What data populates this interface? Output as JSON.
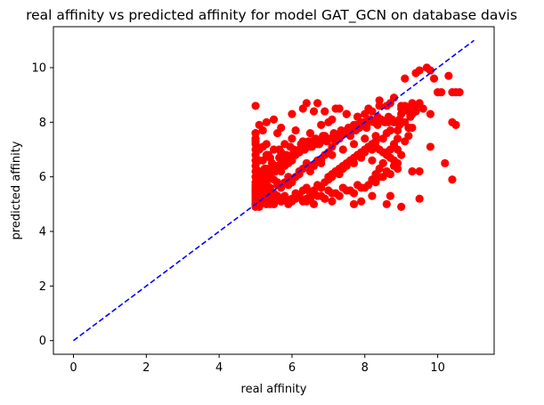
{
  "chart_data": {
    "type": "scatter",
    "title": "real affinity vs predicted affinity for model GAT_GCN on database davis",
    "xlabel": "real affinity",
    "ylabel": "predicted affinity",
    "xlim": [
      -0.55,
      11.55
    ],
    "ylim": [
      -0.5,
      11.5
    ],
    "xticks": [
      0,
      2,
      4,
      6,
      8,
      10
    ],
    "yticks": [
      0,
      2,
      4,
      6,
      8,
      10
    ],
    "grid": false,
    "series": [
      {
        "kind": "points",
        "color": "#ff0000",
        "marker": "circle",
        "x": [
          5.0,
          5.0,
          5.0,
          5.0,
          5.0,
          5.0,
          5.0,
          5.0,
          5.0,
          5.0,
          5.0,
          5.0,
          5.0,
          5.0,
          5.0,
          5.0,
          5.0,
          5.0,
          5.0,
          5.0,
          5.1,
          5.1,
          5.1,
          5.1,
          5.1,
          5.1,
          5.1,
          5.2,
          5.2,
          5.2,
          5.2,
          5.2,
          5.2,
          5.3,
          5.3,
          5.3,
          5.3,
          5.3,
          5.3,
          5.4,
          5.4,
          5.4,
          5.4,
          5.5,
          5.5,
          5.5,
          5.5,
          5.5,
          5.6,
          5.6,
          5.6,
          5.6,
          5.7,
          5.7,
          5.7,
          5.7,
          5.8,
          5.8,
          5.8,
          5.8,
          5.9,
          5.9,
          5.9,
          6.0,
          6.0,
          6.0,
          6.0,
          6.1,
          6.1,
          6.1,
          6.1,
          6.2,
          6.2,
          6.2,
          6.3,
          6.3,
          6.3,
          6.4,
          6.4,
          6.4,
          6.5,
          6.5,
          6.5,
          6.6,
          6.6,
          6.6,
          6.7,
          6.7,
          6.7,
          6.8,
          6.8,
          6.8,
          6.9,
          6.9,
          6.9,
          7.0,
          7.0,
          7.0,
          7.1,
          7.1,
          7.1,
          7.2,
          7.2,
          7.3,
          7.3,
          7.3,
          7.4,
          7.4,
          7.5,
          7.5,
          7.5,
          7.6,
          7.6,
          7.7,
          7.7,
          7.8,
          7.8,
          7.9,
          7.9,
          8.0,
          8.0,
          8.1,
          8.1,
          8.2,
          8.2,
          8.3,
          8.3,
          8.4,
          8.5,
          8.5,
          8.6,
          8.7,
          8.8,
          8.9,
          9.0,
          9.1,
          9.2,
          9.3,
          9.4,
          9.5,
          5.0,
          5.2,
          5.4,
          5.6,
          5.8,
          6.0,
          6.2,
          6.4,
          6.6,
          6.8,
          7.0,
          7.2,
          7.4,
          7.6,
          7.8,
          8.0,
          8.2,
          8.4,
          8.6,
          8.8,
          5.1,
          5.3,
          5.5,
          5.7,
          5.9,
          6.1,
          6.3,
          6.5,
          6.7,
          6.9,
          7.1,
          7.3,
          7.5,
          7.7,
          7.9,
          8.1,
          8.3,
          8.5,
          8.7,
          8.9,
          5.0,
          5.0,
          5.1,
          5.2,
          5.3,
          5.5,
          5.7,
          6.0,
          6.3,
          6.6,
          6.9,
          7.2,
          7.5,
          7.8,
          8.1,
          8.4,
          8.7,
          9.0,
          9.2,
          9.4,
          5.05,
          5.15,
          5.25,
          5.35,
          5.45,
          5.55,
          5.65,
          5.75,
          5.85,
          5.95,
          6.05,
          6.15,
          6.25,
          6.35,
          6.45,
          6.55,
          6.65,
          6.75,
          6.85,
          6.95,
          7.05,
          7.15,
          7.25,
          7.35,
          7.45,
          7.55,
          7.65,
          7.75,
          7.85,
          7.95,
          8.05,
          8.15,
          8.25,
          8.35,
          8.45,
          8.55,
          8.65,
          8.75,
          8.85,
          8.95,
          5.0,
          5.1,
          5.2,
          5.3,
          5.4,
          5.5,
          5.6,
          5.7,
          5.8,
          5.9,
          6.0,
          6.1,
          6.2,
          6.3,
          6.4,
          6.5,
          6.6,
          6.7,
          6.8,
          6.9,
          7.0,
          7.1,
          7.2,
          7.3,
          7.4,
          7.5,
          7.6,
          7.7,
          7.8,
          7.9,
          8.0,
          8.1,
          8.2,
          8.3,
          8.4,
          8.5,
          8.6,
          8.7,
          8.8,
          8.9,
          5.0,
          5.3,
          5.6,
          5.9,
          6.2,
          6.5,
          6.8,
          7.1,
          7.4,
          7.7,
          8.0,
          8.3,
          8.6,
          8.9,
          9.2,
          5.05,
          5.35,
          5.65,
          5.95,
          6.25,
          6.55,
          6.85,
          7.15,
          7.45,
          7.75,
          8.05,
          8.35,
          8.65,
          8.95,
          9.25,
          5.0,
          5.4,
          6.4,
          6.6,
          6.9,
          7.1,
          7.3,
          7.7,
          7.9,
          8.2,
          8.6,
          8.7,
          9.0,
          9.3,
          9.5,
          9.1,
          9.4,
          9.5,
          9.7,
          9.8,
          9.9,
          10.0,
          10.1,
          10.3,
          10.4,
          10.5,
          10.6,
          9.2,
          9.3,
          9.6,
          9.8,
          9.8,
          10.2,
          10.4,
          10.5,
          9.0,
          8.8,
          9.2,
          10.4,
          9.5,
          9.1,
          8.7,
          8.5,
          8.3,
          8.9,
          8.6,
          8.4,
          8.2,
          9.0,
          8.8,
          9.1,
          9.3
        ],
        "y": [
          5.0,
          5.2,
          5.4,
          5.6,
          5.8,
          6.0,
          6.2,
          6.4,
          6.6,
          6.8,
          7.0,
          7.2,
          7.4,
          7.6,
          4.9,
          5.1,
          5.3,
          5.5,
          5.7,
          8.6,
          5.0,
          5.3,
          5.6,
          5.9,
          6.2,
          6.6,
          7.0,
          5.1,
          5.4,
          5.8,
          6.2,
          6.6,
          7.1,
          5.0,
          5.4,
          5.8,
          6.3,
          6.8,
          7.2,
          5.2,
          5.6,
          6.1,
          6.7,
          5.0,
          5.4,
          5.9,
          6.4,
          7.0,
          5.2,
          5.7,
          6.3,
          7.6,
          5.1,
          5.6,
          6.2,
          6.9,
          5.3,
          5.8,
          6.4,
          7.2,
          5.1,
          5.7,
          6.5,
          5.2,
          5.8,
          6.6,
          7.4,
          5.4,
          6.0,
          6.8,
          7.7,
          5.3,
          6.1,
          7.0,
          5.5,
          6.3,
          7.3,
          5.6,
          6.5,
          8.7,
          5.4,
          6.2,
          7.6,
          5.5,
          6.4,
          7.2,
          5.7,
          6.6,
          8.7,
          5.6,
          6.5,
          7.9,
          5.8,
          6.8,
          7.5,
          5.9,
          6.9,
          8.0,
          6.0,
          7.1,
          8.1,
          6.2,
          7.3,
          6.1,
          7.4,
          8.5,
          6.3,
          7.6,
          6.4,
          7.7,
          8.3,
          6.6,
          7.5,
          6.5,
          7.9,
          6.8,
          8.2,
          6.7,
          8.0,
          6.9,
          8.3,
          7.1,
          8.1,
          7.0,
          8.4,
          7.3,
          6.1,
          8.8,
          7.4,
          6.5,
          8.6,
          7.7,
          8.9,
          7.0,
          8.6,
          7.3,
          8.5,
          7.8,
          8.4,
          8.7,
          5.0,
          5.2,
          5.1,
          5.3,
          5.2,
          5.1,
          5.3,
          5.2,
          5.4,
          5.3,
          5.5,
          5.4,
          5.6,
          5.5,
          5.7,
          5.6,
          5.9,
          6.0,
          6.2,
          6.4,
          4.9,
          5.0,
          5.0,
          5.1,
          5.0,
          5.2,
          5.1,
          5.2,
          5.3,
          5.2,
          5.4,
          5.3,
          5.5,
          5.4,
          5.6,
          5.7,
          5.8,
          6.0,
          6.1,
          6.3,
          7.6,
          7.3,
          7.9,
          7.7,
          8.0,
          8.1,
          7.8,
          8.3,
          8.5,
          8.4,
          8.4,
          8.5,
          8.3,
          8.2,
          8.5,
          8.6,
          8.7,
          8.3,
          8.5,
          8.6,
          6.1,
          5.9,
          6.3,
          6.0,
          6.5,
          6.2,
          6.7,
          6.4,
          6.8,
          6.6,
          7.0,
          6.9,
          7.2,
          7.0,
          7.3,
          7.1,
          7.4,
          7.2,
          7.5,
          7.3,
          7.4,
          7.6,
          7.5,
          7.7,
          7.6,
          7.8,
          7.7,
          7.9,
          7.8,
          8.0,
          7.9,
          8.1,
          8.0,
          8.2,
          8.1,
          8.0,
          8.2,
          8.1,
          8.0,
          7.9,
          5.6,
          5.8,
          6.0,
          6.1,
          6.2,
          6.3,
          6.4,
          6.5,
          6.6,
          6.7,
          6.8,
          6.9,
          6.9,
          7.0,
          7.1,
          7.1,
          7.2,
          7.2,
          7.3,
          7.4,
          6.0,
          6.1,
          6.2,
          6.3,
          6.4,
          6.5,
          6.6,
          6.7,
          6.8,
          6.9,
          7.0,
          7.1,
          7.2,
          7.1,
          7.0,
          6.9,
          6.8,
          6.7,
          6.6,
          6.5,
          5.5,
          5.6,
          5.8,
          6.0,
          6.2,
          6.4,
          6.6,
          6.8,
          7.0,
          7.2,
          7.4,
          7.5,
          7.6,
          7.7,
          7.8,
          6.6,
          6.8,
          7.0,
          7.1,
          7.2,
          7.3,
          7.4,
          7.5,
          7.6,
          7.7,
          7.8,
          7.9,
          8.0,
          8.1,
          8.2,
          5.5,
          5.0,
          5.1,
          5.0,
          5.2,
          5.1,
          5.3,
          5.0,
          5.1,
          5.3,
          5.0,
          5.3,
          4.9,
          6.2,
          5.2,
          9.6,
          9.8,
          9.9,
          10.0,
          9.9,
          9.6,
          9.1,
          9.1,
          9.7,
          9.1,
          9.1,
          9.1,
          8.4,
          8.3,
          8.5,
          7.1,
          8.3,
          6.5,
          8.0,
          7.9,
          6.8,
          7.2,
          7.5,
          5.9,
          6.2,
          8.0,
          7.0,
          6.5,
          6.0,
          7.4,
          6.9,
          6.3,
          6.6,
          8.5,
          8.0,
          8.6,
          8.7
        ]
      },
      {
        "kind": "line",
        "style": "dashed",
        "color": "#0000ff",
        "x": [
          0,
          11
        ],
        "y": [
          0,
          11
        ]
      }
    ]
  }
}
